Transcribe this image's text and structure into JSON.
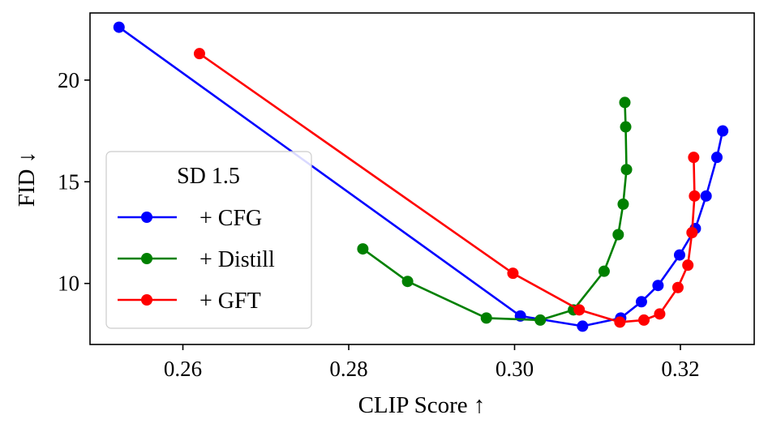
{
  "chart_data": {
    "type": "line",
    "title": "",
    "xlabel": "CLIP Score ↑",
    "ylabel": "FID ↓",
    "xlim": [
      0.2488,
      0.3289
    ],
    "ylim": [
      7.0,
      23.3
    ],
    "x_ticks": [
      0.26,
      0.28,
      0.3,
      0.32
    ],
    "x_tick_labels": [
      "0.26",
      "0.28",
      "0.30",
      "0.32"
    ],
    "y_ticks": [
      10,
      15,
      20
    ],
    "y_tick_labels": [
      "10",
      "15",
      "20"
    ],
    "grid": false,
    "legend": {
      "title": "SD 1.5",
      "placement": "center-left"
    },
    "series": [
      {
        "name": "+ CFG",
        "color": "#0000ff",
        "x": [
          0.2523,
          0.3007,
          0.3082,
          0.3128,
          0.3153,
          0.3173,
          0.3199,
          0.3218,
          0.3231,
          0.3244,
          0.3251
        ],
        "y": [
          22.6,
          8.4,
          7.9,
          8.3,
          9.1,
          9.9,
          11.4,
          12.7,
          14.3,
          16.2,
          17.5
        ]
      },
      {
        "name": "+ Distill",
        "color": "#008000",
        "x": [
          0.2817,
          0.2871,
          0.2966,
          0.3031,
          0.3071,
          0.3108,
          0.3125,
          0.3131,
          0.3135,
          0.3134,
          0.3133
        ],
        "y": [
          11.7,
          10.1,
          8.3,
          8.2,
          8.7,
          10.6,
          12.4,
          13.9,
          15.6,
          17.7,
          18.9
        ]
      },
      {
        "name": "+ GFT",
        "color": "#ff0000",
        "x": [
          0.262,
          0.2998,
          0.3078,
          0.3127,
          0.3156,
          0.3175,
          0.3197,
          0.3209,
          0.3214,
          0.3217,
          0.3216
        ],
        "y": [
          21.3,
          10.5,
          8.7,
          8.1,
          8.2,
          8.5,
          9.8,
          10.9,
          12.5,
          14.3,
          16.2
        ]
      }
    ]
  }
}
